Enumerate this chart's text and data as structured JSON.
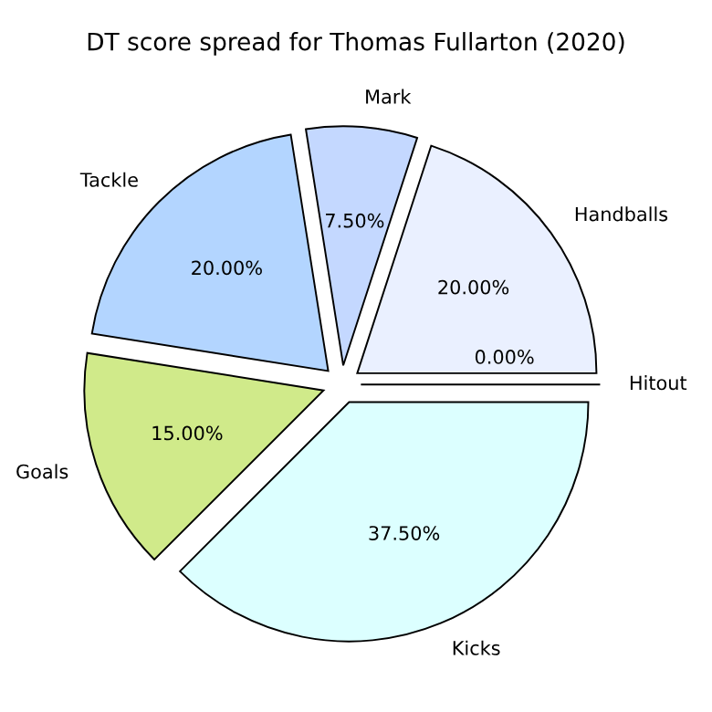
{
  "chart_data": {
    "type": "pie",
    "title": "DT score spread for Thomas Fullarton (2020)",
    "categories": [
      "Handballs",
      "Mark",
      "Tackle",
      "Goals",
      "Kicks",
      "Hitout"
    ],
    "values": [
      20,
      7.5,
      20,
      15,
      37.5,
      0
    ],
    "value_labels": [
      "20.00%",
      "7.50%",
      "20.00%",
      "15.00%",
      "37.50%",
      "0.00%"
    ],
    "colors": [
      "#eaf0ff",
      "#c4d8ff",
      "#b3d5ff",
      "#d0ea8a",
      "#dcffff",
      "#e8e8e8"
    ],
    "legend": false
  }
}
